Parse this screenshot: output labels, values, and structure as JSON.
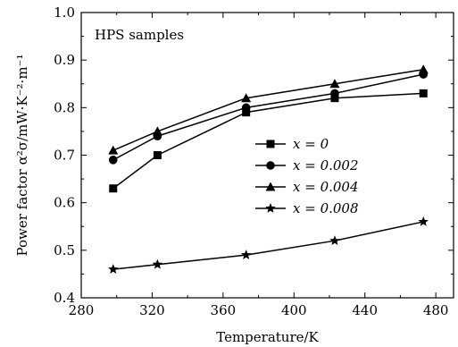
{
  "chart_data": {
    "type": "line",
    "xlabel": "Temperature/K",
    "ylabel": "Power factor α²σ/mW·K⁻²·m⁻¹",
    "annotation": "HPS samples",
    "xlim": [
      280,
      490
    ],
    "ylim": [
      0.4,
      1.0
    ],
    "xticks": [
      280,
      320,
      360,
      400,
      440,
      480
    ],
    "yticks": [
      0.4,
      0.5,
      0.6,
      0.7,
      0.8,
      0.9,
      1.0
    ],
    "ytick_labels": [
      "0.4",
      "0.5",
      "0.6",
      "0.7",
      "0.8",
      "0.9",
      "1.0"
    ],
    "legend_placement": "center-right",
    "grid": false,
    "series": [
      {
        "name": "x = 0",
        "marker": "square",
        "x": [
          298,
          323,
          373,
          423,
          473
        ],
        "y": [
          0.63,
          0.7,
          0.79,
          0.82,
          0.83
        ]
      },
      {
        "name": "x = 0.002",
        "marker": "circle",
        "x": [
          298,
          323,
          373,
          423,
          473
        ],
        "y": [
          0.69,
          0.74,
          0.8,
          0.83,
          0.87
        ]
      },
      {
        "name": "x = 0.004",
        "marker": "triangle",
        "x": [
          298,
          323,
          373,
          423,
          473
        ],
        "y": [
          0.71,
          0.75,
          0.82,
          0.85,
          0.88
        ]
      },
      {
        "name": "x = 0.008",
        "marker": "star",
        "x": [
          298,
          323,
          373,
          423,
          473
        ],
        "y": [
          0.46,
          0.47,
          0.49,
          0.52,
          0.56
        ]
      }
    ]
  }
}
